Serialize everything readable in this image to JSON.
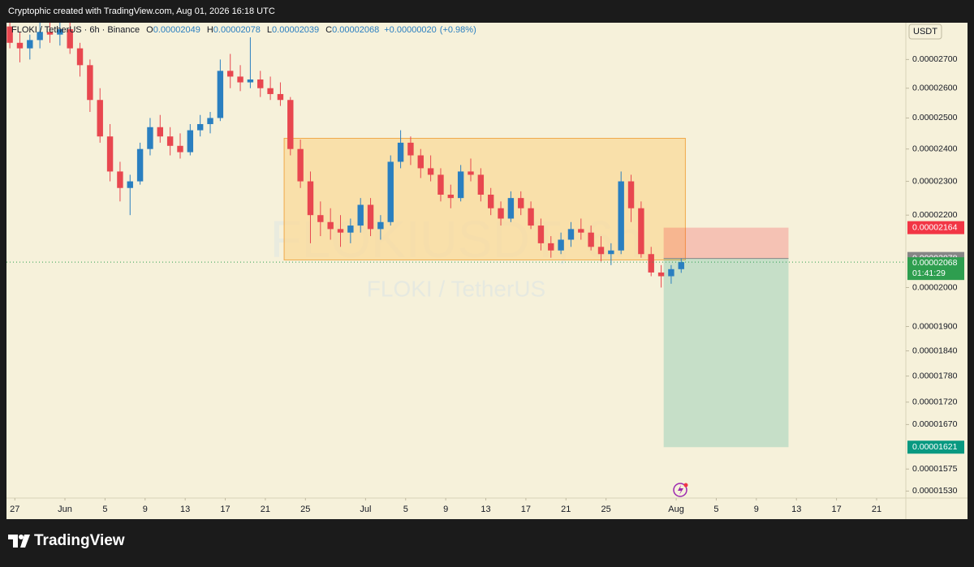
{
  "header": {
    "text": "Cryptophic created with TradingView.com, Aug 01, 2026 16:18 UTC"
  },
  "footer": {
    "brand": "TradingView"
  },
  "chart_data": {
    "type": "candlestick",
    "log_scale": true,
    "grid": false,
    "currency": "USDT",
    "watermark": {
      "symbol": "FLOKIUSDT, 6h",
      "description": "FLOKI / TetherUS"
    },
    "legend": {
      "symbol": "FLOKI / TetherUS · 6h · Binance",
      "fields": [
        {
          "key": "O",
          "value": 2.049e-05
        },
        {
          "key": "H",
          "value": 2.078e-05
        },
        {
          "key": "L",
          "value": 2.039e-05
        },
        {
          "key": "C",
          "value": 2.068e-05
        }
      ],
      "change": {
        "value": 2e-07,
        "label": "+0.00000020"
      },
      "change_pct": {
        "value": 0.98,
        "label": "(+0.98%)"
      }
    },
    "up_color": "#2a7fc0",
    "down_color": "#e8474f",
    "xlim": [
      "2026-05-26T04:00",
      "2026-08-23T22:00"
    ],
    "ylim": [
      1.516e-05,
      2.834e-05
    ],
    "xticks": [
      {
        "value": "2026-05-27",
        "label": "27"
      },
      {
        "value": "2026-06-01",
        "label": "Jun"
      },
      {
        "value": "2026-06-05",
        "label": "5"
      },
      {
        "value": "2026-06-09",
        "label": "9"
      },
      {
        "value": "2026-06-13",
        "label": "13"
      },
      {
        "value": "2026-06-17",
        "label": "17"
      },
      {
        "value": "2026-06-21",
        "label": "21"
      },
      {
        "value": "2026-06-25",
        "label": "25"
      },
      {
        "value": "2026-07-01",
        "label": "Jul"
      },
      {
        "value": "2026-07-05",
        "label": "5"
      },
      {
        "value": "2026-07-09",
        "label": "9"
      },
      {
        "value": "2026-07-13",
        "label": "13"
      },
      {
        "value": "2026-07-17",
        "label": "17"
      },
      {
        "value": "2026-07-21",
        "label": "21"
      },
      {
        "value": "2026-07-25",
        "label": "25"
      },
      {
        "value": "2026-08-01",
        "label": "Aug"
      },
      {
        "value": "2026-08-05",
        "label": "5"
      },
      {
        "value": "2026-08-09",
        "label": "9"
      },
      {
        "value": "2026-08-13",
        "label": "13"
      },
      {
        "value": "2026-08-17",
        "label": "17"
      },
      {
        "value": "2026-08-21",
        "label": "21"
      }
    ],
    "yticks": [
      {
        "value": 2.7e-05,
        "label": "0.00002700"
      },
      {
        "value": 2.6e-05,
        "label": "0.00002600"
      },
      {
        "value": 2.5e-05,
        "label": "0.00002500"
      },
      {
        "value": 2.4e-05,
        "label": "0.00002400"
      },
      {
        "value": 2.3e-05,
        "label": "0.00002300"
      },
      {
        "value": 2.2e-05,
        "label": "0.00002200"
      },
      {
        "value": 2e-05,
        "label": "0.00002000"
      },
      {
        "value": 1.9e-05,
        "label": "0.00001900"
      },
      {
        "value": 1.84e-05,
        "label": "0.00001840"
      },
      {
        "value": 1.78e-05,
        "label": "0.00001780"
      },
      {
        "value": 1.72e-05,
        "label": "0.00001720"
      },
      {
        "value": 1.67e-05,
        "label": "0.00001670"
      },
      1.575e-05,
      {
        "value": 1.53e-05,
        "label": "0.00001530"
      }
    ],
    "x": [
      "2026-05-26",
      "2026-05-27",
      "2026-05-28",
      "2026-05-29",
      "2026-05-30",
      "2026-05-31",
      "2026-06-01",
      "2026-06-02",
      "2026-06-03",
      "2026-06-04",
      "2026-06-05",
      "2026-06-06",
      "2026-06-07",
      "2026-06-08",
      "2026-06-09",
      "2026-06-10",
      "2026-06-11",
      "2026-06-12",
      "2026-06-13",
      "2026-06-14",
      "2026-06-15",
      "2026-06-16",
      "2026-06-17",
      "2026-06-18",
      "2026-06-19",
      "2026-06-20",
      "2026-06-21",
      "2026-06-22",
      "2026-06-23",
      "2026-06-24",
      "2026-06-25",
      "2026-06-26",
      "2026-06-27",
      "2026-06-28",
      "2026-06-29",
      "2026-06-30",
      "2026-07-01",
      "2026-07-02",
      "2026-07-03",
      "2026-07-04",
      "2026-07-05",
      "2026-07-06",
      "2026-07-07",
      "2026-07-08",
      "2026-07-09",
      "2026-07-10",
      "2026-07-11",
      "2026-07-12",
      "2026-07-13",
      "2026-07-14",
      "2026-07-15",
      "2026-07-16",
      "2026-07-17",
      "2026-07-18",
      "2026-07-19",
      "2026-07-20",
      "2026-07-21",
      "2026-07-22",
      "2026-07-23",
      "2026-07-24",
      "2026-07-25",
      "2026-07-26",
      "2026-07-27",
      "2026-07-28",
      "2026-07-29",
      "2026-07-30",
      "2026-07-31",
      "2026-08-01"
    ],
    "open": [
      2.82e-05,
      2.76e-05,
      2.74e-05,
      2.77e-05,
      2.8e-05,
      2.79e-05,
      2.81e-05,
      2.74e-05,
      2.68e-05,
      2.56e-05,
      2.44e-05,
      2.33e-05,
      2.28e-05,
      2.3e-05,
      2.4e-05,
      2.47e-05,
      2.44e-05,
      2.41e-05,
      2.39e-05,
      2.46e-05,
      2.48e-05,
      2.5e-05,
      2.66e-05,
      2.64e-05,
      2.62e-05,
      2.63e-05,
      2.6e-05,
      2.58e-05,
      2.56e-05,
      2.4e-05,
      2.3e-05,
      2.2e-05,
      2.18e-05,
      2.16e-05,
      2.15e-05,
      2.17e-05,
      2.23e-05,
      2.16e-05,
      2.18e-05,
      2.36e-05,
      2.42e-05,
      2.38e-05,
      2.34e-05,
      2.32e-05,
      2.26e-05,
      2.25e-05,
      2.33e-05,
      2.32e-05,
      2.26e-05,
      2.22e-05,
      2.19e-05,
      2.25e-05,
      2.22e-05,
      2.17e-05,
      2.12e-05,
      2.1e-05,
      2.13e-05,
      2.16e-05,
      2.15e-05,
      2.11e-05,
      2.09e-05,
      2.1e-05,
      2.3e-05,
      2.22e-05,
      2.09e-05,
      2.04e-05,
      2.03e-05,
      2.049e-05
    ],
    "high": [
      2.834e-05,
      2.8e-05,
      2.79e-05,
      2.834e-05,
      2.834e-05,
      2.834e-05,
      2.834e-05,
      2.76e-05,
      2.7e-05,
      2.6e-05,
      2.48e-05,
      2.36e-05,
      2.32e-05,
      2.42e-05,
      2.5e-05,
      2.51e-05,
      2.47e-05,
      2.45e-05,
      2.48e-05,
      2.51e-05,
      2.52e-05,
      2.7e-05,
      2.72e-05,
      2.68e-05,
      2.78e-05,
      2.66e-05,
      2.64e-05,
      2.62e-05,
      2.57e-05,
      2.43e-05,
      2.33e-05,
      2.24e-05,
      2.22e-05,
      2.2e-05,
      2.19e-05,
      2.25e-05,
      2.25e-05,
      2.2e-05,
      2.38e-05,
      2.46e-05,
      2.44e-05,
      2.4e-05,
      2.38e-05,
      2.34e-05,
      2.29e-05,
      2.35e-05,
      2.37e-05,
      2.34e-05,
      2.28e-05,
      2.24e-05,
      2.27e-05,
      2.27e-05,
      2.24e-05,
      2.19e-05,
      2.14e-05,
      2.15e-05,
      2.18e-05,
      2.19e-05,
      2.17e-05,
      2.14e-05,
      2.12e-05,
      2.33e-05,
      2.32e-05,
      2.24e-05,
      2.11e-05,
      2.06e-05,
      2.06e-05,
      2.078e-05
    ],
    "low": [
      2.74e-05,
      2.69e-05,
      2.7e-05,
      2.74e-05,
      2.76e-05,
      2.75e-05,
      2.72e-05,
      2.64e-05,
      2.52e-05,
      2.42e-05,
      2.3e-05,
      2.24e-05,
      2.2e-05,
      2.29e-05,
      2.38e-05,
      2.42e-05,
      2.38e-05,
      2.37e-05,
      2.38e-05,
      2.44e-05,
      2.45e-05,
      2.49e-05,
      2.6e-05,
      2.59e-05,
      2.6e-05,
      2.57e-05,
      2.56e-05,
      2.54e-05,
      2.38e-05,
      2.28e-05,
      2.12e-05,
      2.14e-05,
      2.13e-05,
      2.11e-05,
      2.12e-05,
      2.15e-05,
      2.14e-05,
      2.13e-05,
      2.17e-05,
      2.34e-05,
      2.35e-05,
      2.31e-05,
      2.3e-05,
      2.24e-05,
      2.22e-05,
      2.24e-05,
      2.3e-05,
      2.24e-05,
      2.2e-05,
      2.17e-05,
      2.18e-05,
      2.2e-05,
      2.16e-05,
      2.1e-05,
      2.08e-05,
      2.09e-05,
      2.11e-05,
      2.13e-05,
      2.1e-05,
      2.07e-05,
      2.06e-05,
      2.09e-05,
      2.18e-05,
      2.08e-05,
      2.03e-05,
      2e-05,
      2.01e-05,
      2.039e-05
    ],
    "close": [
      2.76e-05,
      2.74e-05,
      2.77e-05,
      2.8e-05,
      2.79e-05,
      2.81e-05,
      2.74e-05,
      2.68e-05,
      2.56e-05,
      2.44e-05,
      2.33e-05,
      2.28e-05,
      2.3e-05,
      2.4e-05,
      2.47e-05,
      2.44e-05,
      2.41e-05,
      2.39e-05,
      2.46e-05,
      2.48e-05,
      2.5e-05,
      2.66e-05,
      2.64e-05,
      2.62e-05,
      2.63e-05,
      2.6e-05,
      2.58e-05,
      2.56e-05,
      2.4e-05,
      2.3e-05,
      2.2e-05,
      2.18e-05,
      2.16e-05,
      2.15e-05,
      2.17e-05,
      2.23e-05,
      2.16e-05,
      2.18e-05,
      2.36e-05,
      2.42e-05,
      2.38e-05,
      2.34e-05,
      2.32e-05,
      2.26e-05,
      2.25e-05,
      2.33e-05,
      2.32e-05,
      2.26e-05,
      2.22e-05,
      2.19e-05,
      2.25e-05,
      2.22e-05,
      2.17e-05,
      2.12e-05,
      2.1e-05,
      2.13e-05,
      2.16e-05,
      2.15e-05,
      2.11e-05,
      2.09e-05,
      2.1e-05,
      2.3e-05,
      2.22e-05,
      2.09e-05,
      2.04e-05,
      2.03e-05,
      2.049e-05,
      2.068e-05
    ],
    "range_box": {
      "x0": "2026-06-22T21:00",
      "x1": "2026-08-01T22:00",
      "y0": 2.074e-05,
      "y1": 2.434e-05,
      "color": "#f9d99a",
      "border": "#f0a94a"
    },
    "position": {
      "x0": "2026-07-30T18:00",
      "x1": "2026-08-12T05:00",
      "stop": 2.164e-05,
      "entry": 2.078e-05,
      "target": 1.621e-05,
      "stop_color": "#f23645",
      "entry_color": "#868686",
      "target_color": "#089981"
    },
    "last_price": {
      "value": 2.068e-05,
      "countdown": "01:41:29",
      "color": "#2e9e4f"
    }
  }
}
